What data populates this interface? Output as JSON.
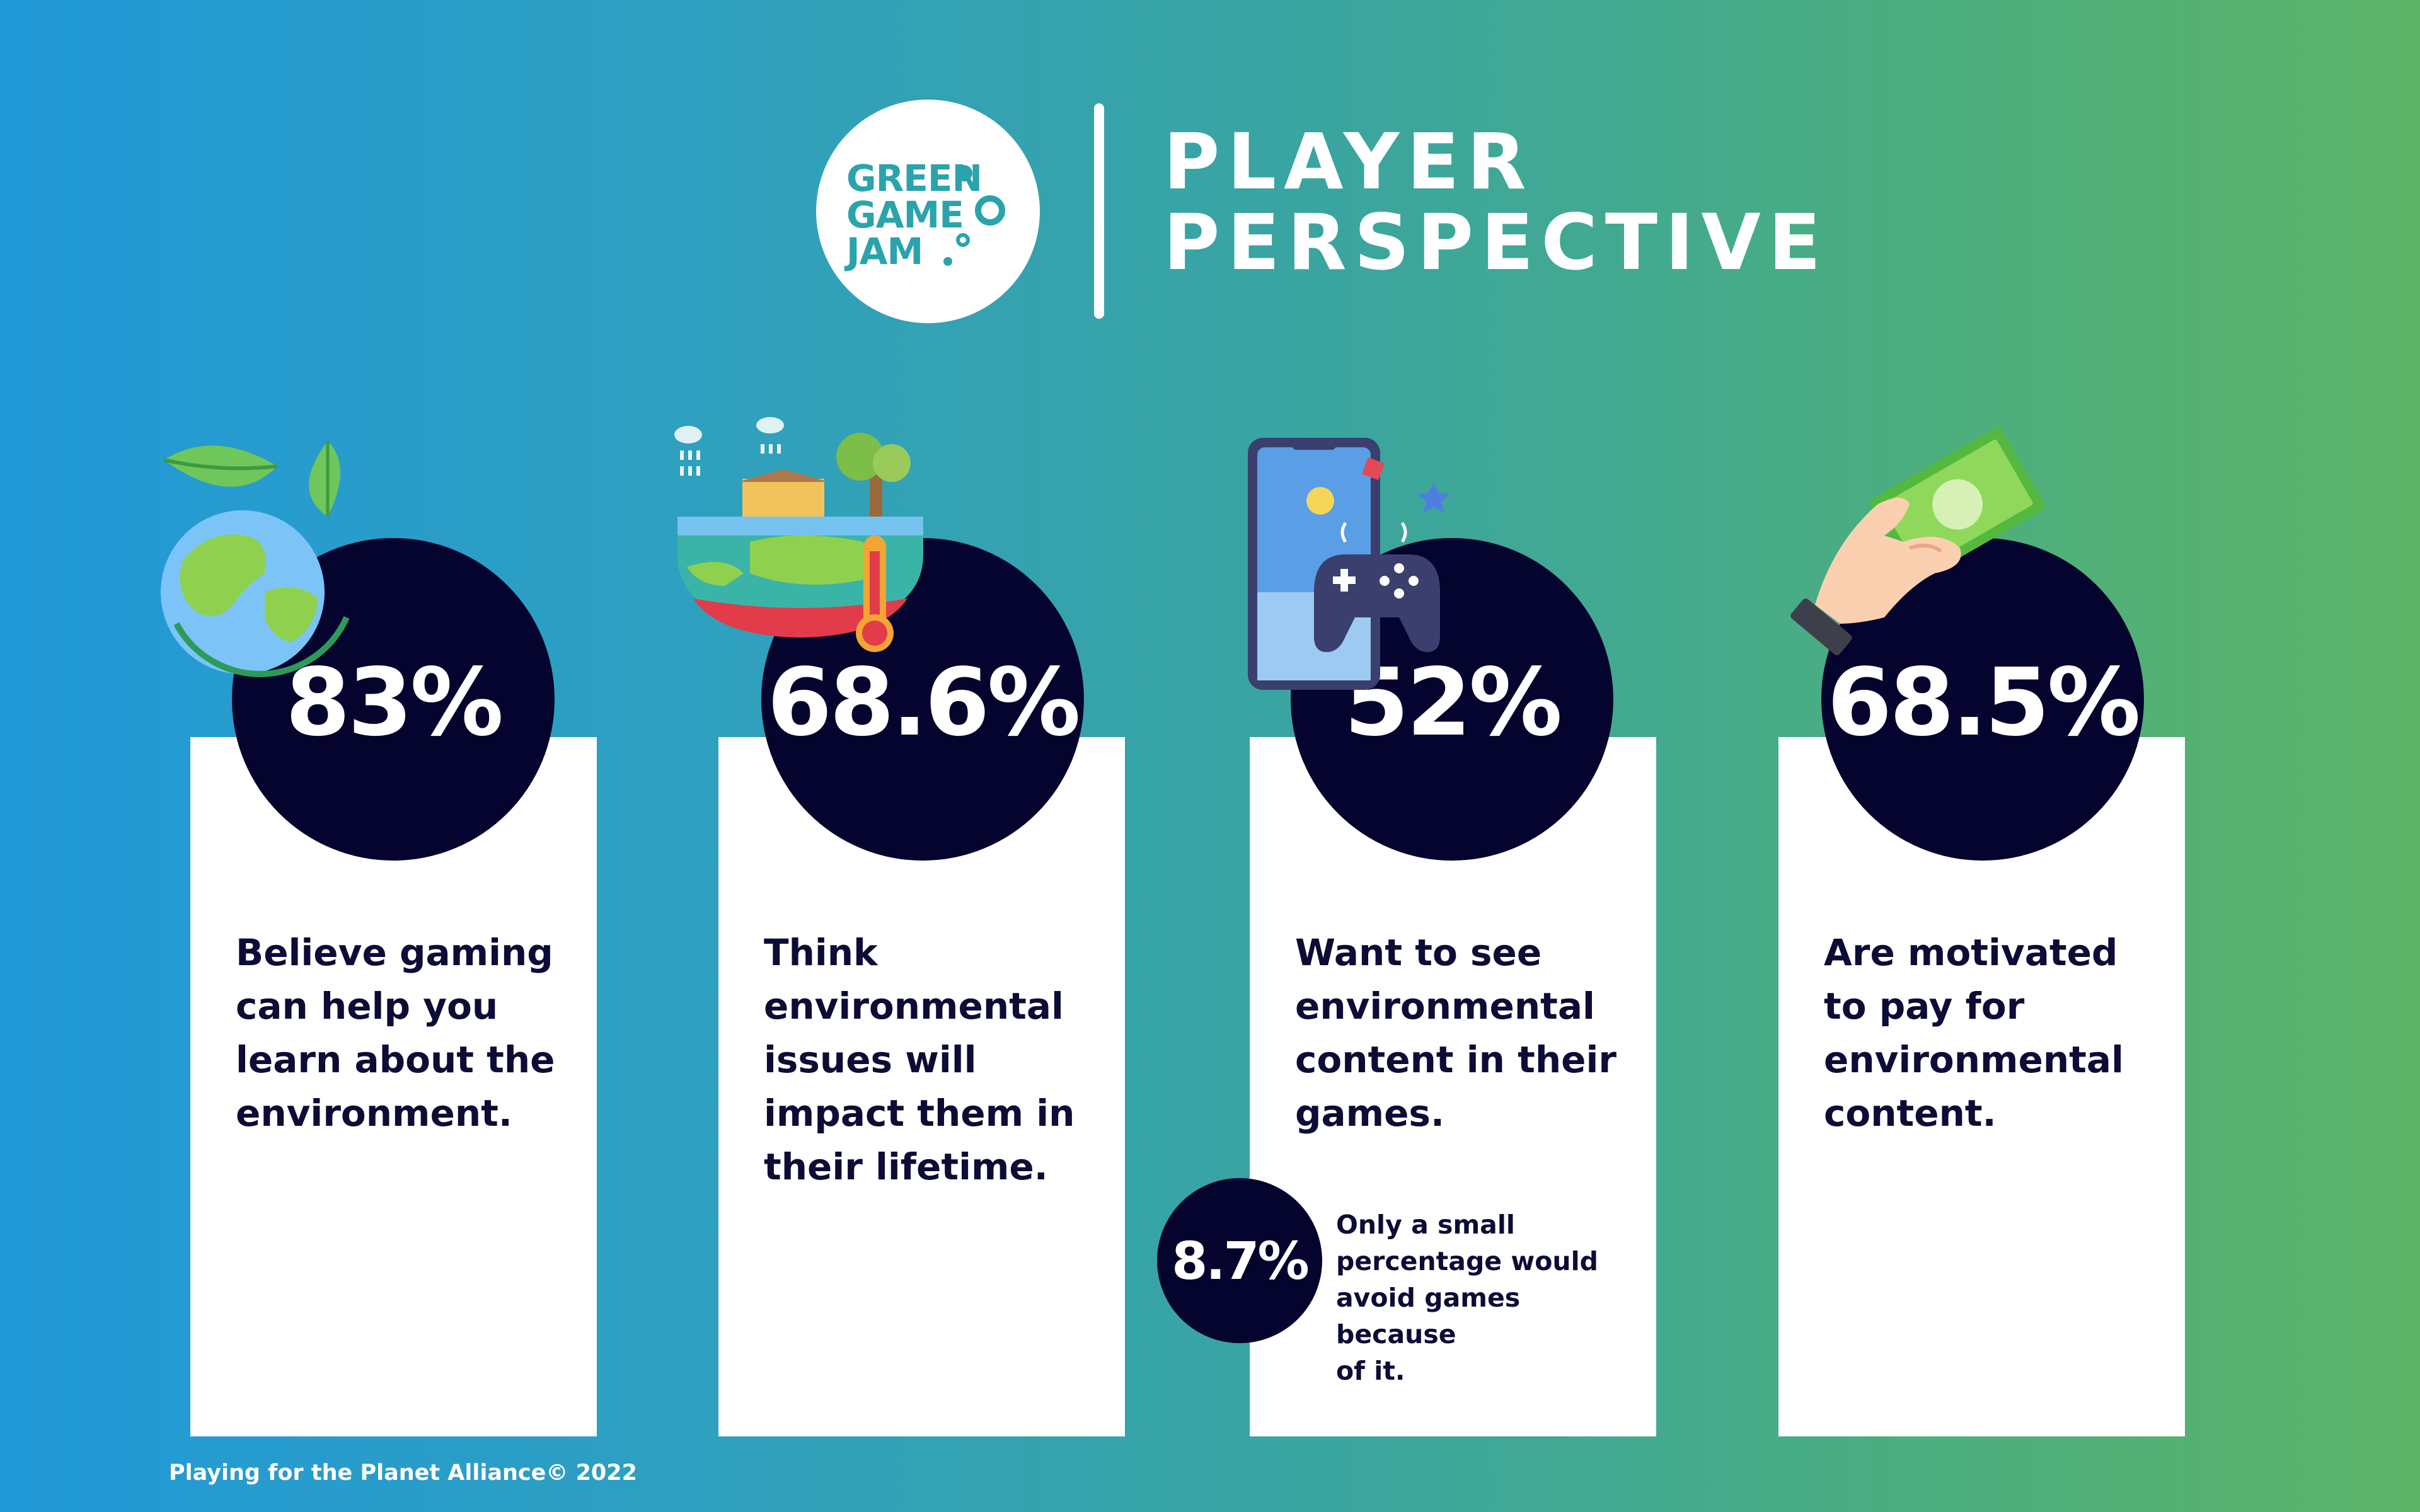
{
  "logo": {
    "lines": [
      "GREEN",
      "GAME",
      "JAM"
    ]
  },
  "title": {
    "line1": "PLAYER",
    "line2": "PERSPECTIVE"
  },
  "stats": [
    {
      "value": "83%",
      "text": "Believe gaming\ncan help you\nlearn about the\nenvironment.",
      "icon": "earth-leaves-icon"
    },
    {
      "value": "68.6%",
      "text": "Think\nenvironmental\nissues will\nimpact them in\ntheir lifetime.",
      "icon": "climate-thermometer-icon"
    },
    {
      "value": "52%",
      "text": "Want to see\nenvironmental\ncontent in their\ngames.",
      "icon": "phone-gamepad-icon"
    },
    {
      "value": "68.5%",
      "text": "Are motivated\nto pay for\nenvironmental\ncontent.",
      "icon": "hand-money-icon"
    }
  ],
  "sub_stat": {
    "value": "8.7%",
    "text": "Only a small\npercentage would\navoid games because\nof it."
  },
  "footer": "Playing for the Planet Alliance© 2022",
  "colors": {
    "navy": "#05042e",
    "text": "#0c0c36",
    "teal": "#2aa3ac",
    "white": "#ffffff"
  }
}
